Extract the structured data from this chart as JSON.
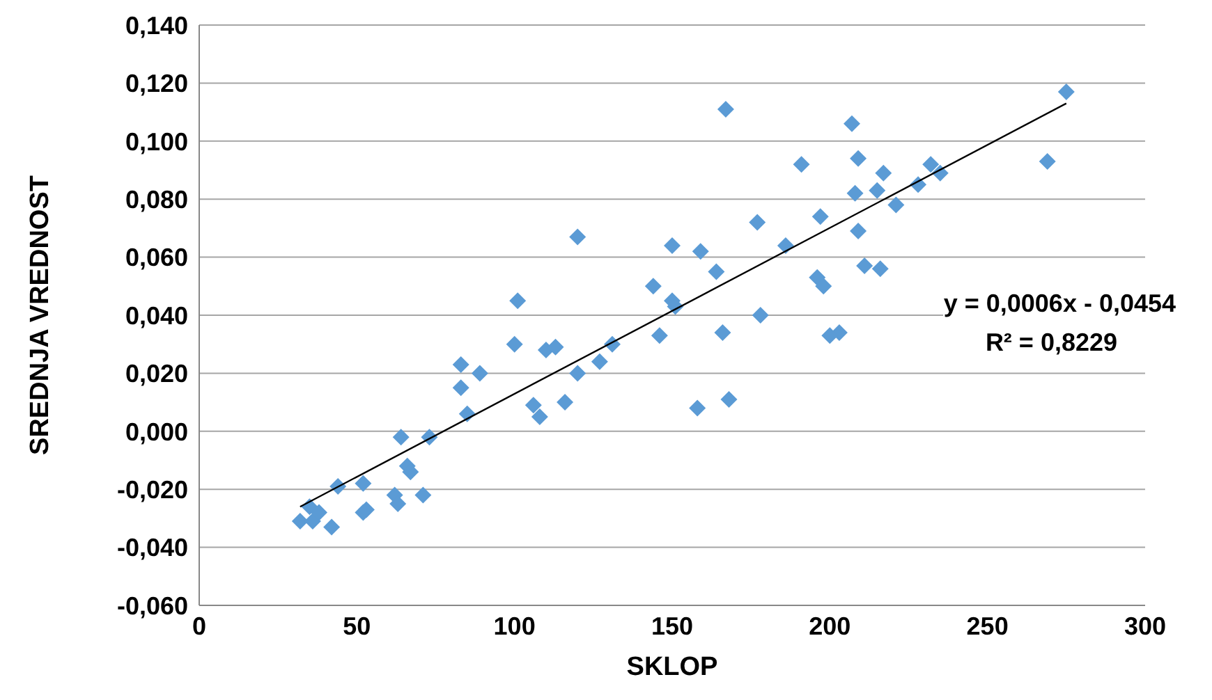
{
  "chart_data": {
    "type": "scatter",
    "xlabel": "SKLOP",
    "ylabel": "SREDNJA VREDNOST",
    "xlim": [
      0,
      300
    ],
    "xticks": [
      0,
      50,
      100,
      150,
      200,
      250,
      300
    ],
    "ylim": [
      -0.06,
      0.14
    ],
    "yticks": [
      {
        "value": -0.06,
        "label": "-0,060"
      },
      {
        "value": -0.04,
        "label": "-0,040"
      },
      {
        "value": -0.02,
        "label": "-0,020"
      },
      {
        "value": 0,
        "label": "0,000"
      },
      {
        "value": 0.02,
        "label": "0,020"
      },
      {
        "value": 0.04,
        "label": "0,040"
      },
      {
        "value": 0.06,
        "label": "0,060"
      },
      {
        "value": 0.08,
        "label": "0,080"
      },
      {
        "value": 0.1,
        "label": "0,100"
      },
      {
        "value": 0.12,
        "label": "0,120"
      },
      {
        "value": 0.14,
        "label": "0,140"
      }
    ],
    "grid": "y",
    "marker": "diamond",
    "annotations": [
      "y = 0,0006x - 0,0454",
      "R² = 0,8229"
    ],
    "series": [
      {
        "color": "#5b9bd5",
        "x": [
          32,
          36,
          35,
          38,
          42,
          44,
          52,
          53,
          52,
          62,
          63,
          64,
          66,
          67,
          71,
          73,
          83,
          83,
          85,
          89,
          100,
          101,
          110,
          113,
          106,
          108,
          116,
          120,
          120,
          127,
          131,
          144,
          150,
          151,
          146,
          150,
          159,
          164,
          166,
          158,
          168,
          167,
          177,
          178,
          186,
          191,
          275,
          207,
          209,
          217,
          232,
          235,
          269,
          228,
          208,
          215,
          221,
          197,
          209,
          196,
          198,
          211,
          216,
          203,
          200
        ],
        "values": [
          -0.031,
          -0.031,
          -0.026,
          -0.028,
          -0.033,
          -0.019,
          -0.028,
          -0.027,
          -0.018,
          -0.022,
          -0.025,
          -0.002,
          -0.012,
          -0.014,
          -0.022,
          -0.002,
          0.023,
          0.015,
          0.006,
          0.02,
          0.03,
          0.045,
          0.028,
          0.029,
          0.009,
          0.005,
          0.01,
          0.02,
          0.067,
          0.024,
          0.03,
          0.05,
          0.045,
          0.043,
          0.033,
          0.064,
          0.062,
          0.055,
          0.034,
          0.008,
          0.011,
          0.111,
          0.072,
          0.04,
          0.064,
          0.092,
          0.117,
          0.106,
          0.094,
          0.089,
          0.092,
          0.089,
          0.093,
          0.085,
          0.082,
          0.083,
          0.078,
          0.074,
          0.069,
          0.053,
          0.05,
          0.057,
          0.056,
          0.034,
          0.033
        ]
      },
      {
        "type": "line",
        "color": "#000000",
        "marker": "none",
        "x": [
          32,
          275
        ],
        "values": [
          -0.026,
          0.113
        ]
      }
    ]
  }
}
